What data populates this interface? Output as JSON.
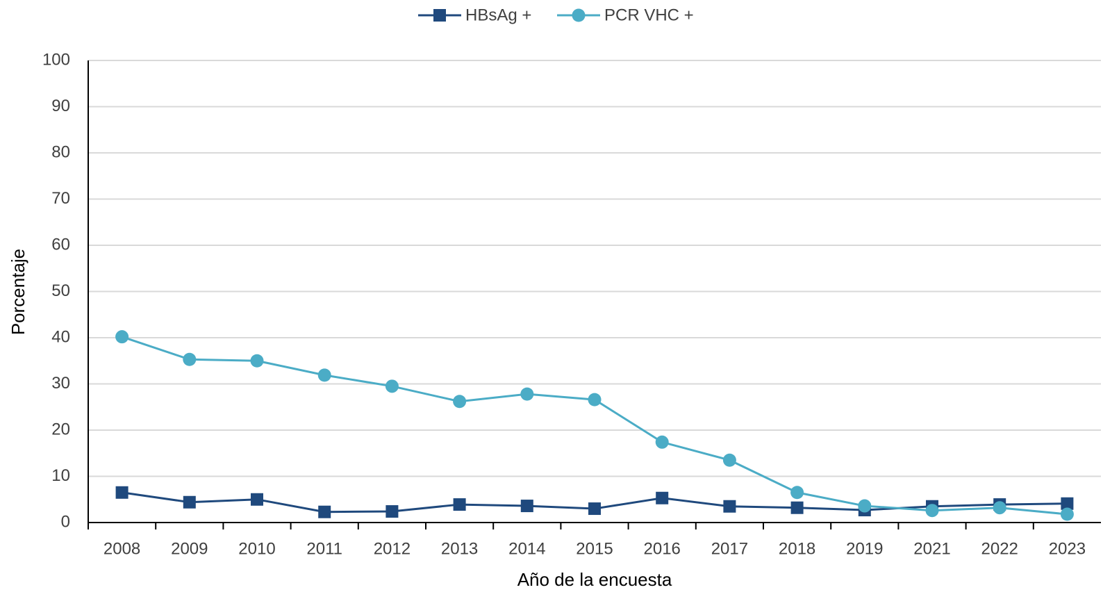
{
  "chart_data": {
    "type": "line",
    "x_label": "Año de la encuesta",
    "y_label": "Porcentaje",
    "categories": [
      "2008",
      "2009",
      "2010",
      "2011",
      "2012",
      "2013",
      "2014",
      "2015",
      "2016",
      "2017",
      "2018",
      "2019",
      "2021",
      "2022",
      "2023"
    ],
    "series": [
      {
        "name": "HBsAg +",
        "color": "#1f497d",
        "marker": "square",
        "values": [
          6.5,
          4.4,
          5.0,
          2.3,
          2.4,
          3.9,
          3.6,
          3.0,
          5.3,
          3.5,
          3.2,
          2.7,
          3.5,
          3.9,
          4.1
        ]
      },
      {
        "name": "PCR VHC +",
        "color": "#4bacc6",
        "marker": "circle",
        "values": [
          40.2,
          35.3,
          35.0,
          31.9,
          29.5,
          26.2,
          27.8,
          26.6,
          17.4,
          13.5,
          6.5,
          3.6,
          2.6,
          3.2,
          1.8
        ]
      }
    ],
    "ylim": [
      0,
      100
    ],
    "yticks": [
      0,
      10,
      20,
      30,
      40,
      50,
      60,
      70,
      80,
      90,
      100
    ],
    "grid": true,
    "legend": "top"
  }
}
